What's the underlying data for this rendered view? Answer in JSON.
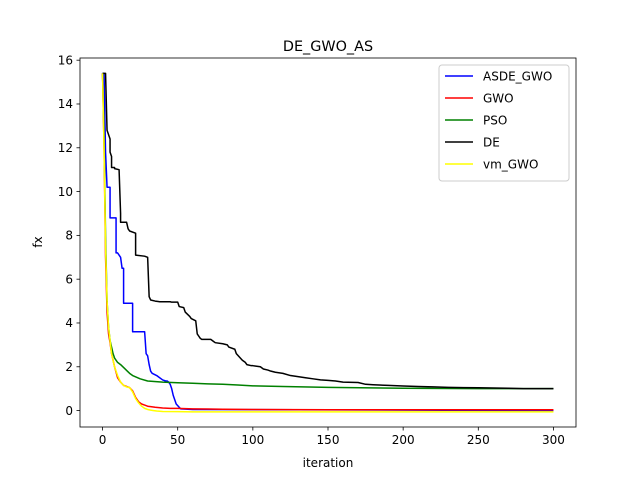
{
  "chart_data": {
    "type": "line",
    "title": "DE_GWO_AS",
    "xlabel": "iteration",
    "ylabel": "fx",
    "xlim": [
      -15,
      315
    ],
    "ylim": [
      -0.75,
      16.1
    ],
    "xticks": [
      0,
      50,
      100,
      150,
      200,
      250,
      300
    ],
    "yticks": [
      0,
      2,
      4,
      6,
      8,
      10,
      12,
      14,
      16
    ],
    "grid": false,
    "legend_position": "top-right",
    "series": [
      {
        "name": "ASDE_GWO",
        "color": "#0000ff",
        "x": [
          0,
          1,
          2,
          3,
          4,
          5,
          5,
          7,
          9,
          9,
          10,
          12,
          13,
          14,
          14,
          19,
          20,
          20,
          27,
          28,
          29,
          30,
          31,
          32,
          33,
          36,
          37,
          40,
          42,
          43,
          44,
          45,
          46,
          47,
          48,
          49,
          51,
          52,
          60,
          300
        ],
        "y": [
          15.4,
          15.4,
          11.8,
          10.2,
          10.2,
          10.2,
          8.8,
          8.8,
          8.8,
          7.2,
          7.2,
          7.0,
          6.5,
          6.5,
          4.9,
          4.9,
          4.9,
          3.6,
          3.6,
          3.6,
          2.6,
          2.5,
          2.1,
          1.8,
          1.7,
          1.6,
          1.55,
          1.4,
          1.35,
          1.35,
          1.3,
          1.2,
          1.0,
          0.7,
          0.5,
          0.3,
          0.15,
          0.08,
          0.05,
          0.0
        ]
      },
      {
        "name": "GWO",
        "color": "#ff0000",
        "x": [
          0,
          1,
          2,
          3,
          4,
          5,
          6,
          8,
          10,
          12,
          14,
          16,
          18,
          20,
          22,
          24,
          26,
          28,
          30,
          32,
          35,
          40,
          45,
          50,
          60,
          70,
          80,
          100,
          150,
          200,
          300
        ],
        "y": [
          15.4,
          12.0,
          7.0,
          4.5,
          3.5,
          3.1,
          2.6,
          2.0,
          1.5,
          1.3,
          1.15,
          1.1,
          1.05,
          0.9,
          0.6,
          0.4,
          0.3,
          0.25,
          0.2,
          0.18,
          0.15,
          0.12,
          0.1,
          0.1,
          0.08,
          0.07,
          0.06,
          0.05,
          0.04,
          0.04,
          0.04
        ]
      },
      {
        "name": "PSO",
        "color": "#008000",
        "x": [
          0,
          1,
          2,
          3,
          4,
          5,
          6,
          7,
          8,
          10,
          12,
          15,
          18,
          20,
          25,
          30,
          40,
          50,
          60,
          70,
          80,
          90,
          100,
          120,
          150,
          200,
          250,
          300
        ],
        "y": [
          15.4,
          12.5,
          8.0,
          5.0,
          3.8,
          3.2,
          2.9,
          2.6,
          2.4,
          2.2,
          2.1,
          1.9,
          1.7,
          1.6,
          1.45,
          1.35,
          1.3,
          1.27,
          1.25,
          1.22,
          1.2,
          1.17,
          1.13,
          1.1,
          1.06,
          1.02,
          1.0,
          1.0
        ]
      },
      {
        "name": "DE",
        "color": "#000000",
        "x": [
          0,
          1,
          2,
          3,
          4,
          5,
          5,
          6,
          6,
          8,
          8,
          11,
          12,
          12,
          15,
          16,
          16,
          17,
          18,
          18,
          22,
          22,
          28,
          30,
          31,
          32,
          35,
          37,
          38,
          45,
          46,
          50,
          51,
          54,
          55,
          58,
          59,
          62,
          63,
          64,
          65,
          66,
          71,
          72,
          74,
          75,
          80,
          83,
          84,
          88,
          89,
          93,
          95,
          96,
          99,
          100,
          105,
          107,
          110,
          112,
          115,
          120,
          125,
          130,
          135,
          140,
          145,
          150,
          155,
          160,
          170,
          175,
          180,
          190,
          200,
          210,
          220,
          230,
          240,
          250,
          260,
          270,
          280,
          290,
          300
        ],
        "y": [
          15.4,
          15.4,
          15.4,
          12.8,
          12.6,
          12.4,
          11.8,
          11.6,
          11.1,
          11.1,
          11.05,
          11.0,
          9.0,
          8.6,
          8.6,
          8.6,
          8.6,
          8.3,
          8.2,
          8.2,
          8.1,
          7.1,
          7.05,
          7.0,
          5.2,
          5.05,
          5.0,
          4.98,
          4.97,
          4.97,
          4.95,
          4.95,
          4.75,
          4.7,
          4.5,
          4.3,
          4.2,
          4.1,
          3.5,
          3.4,
          3.3,
          3.25,
          3.25,
          3.25,
          3.15,
          3.1,
          3.05,
          3.0,
          2.9,
          2.8,
          2.6,
          2.3,
          2.2,
          2.1,
          2.05,
          2.05,
          2.0,
          1.9,
          1.85,
          1.8,
          1.75,
          1.7,
          1.6,
          1.55,
          1.5,
          1.45,
          1.4,
          1.38,
          1.35,
          1.3,
          1.28,
          1.2,
          1.18,
          1.15,
          1.12,
          1.1,
          1.08,
          1.06,
          1.05,
          1.04,
          1.03,
          1.02,
          1.0,
          1.0,
          1.0
        ]
      },
      {
        "name": "vm_GWO",
        "color": "#ffff00",
        "x": [
          0,
          1,
          2,
          3,
          4,
          5,
          6,
          8,
          10,
          12,
          14,
          16,
          18,
          20,
          22,
          24,
          26,
          28,
          30,
          32,
          34,
          36,
          40,
          50,
          60,
          100,
          200,
          300
        ],
        "y": [
          15.4,
          12.0,
          7.5,
          5.0,
          3.8,
          3.2,
          2.6,
          2.0,
          1.6,
          1.3,
          1.15,
          1.08,
          1.05,
          0.85,
          0.55,
          0.35,
          0.2,
          0.1,
          0.05,
          0.02,
          0.0,
          -0.02,
          -0.04,
          -0.05,
          -0.06,
          -0.06,
          -0.06,
          -0.06
        ]
      }
    ]
  }
}
